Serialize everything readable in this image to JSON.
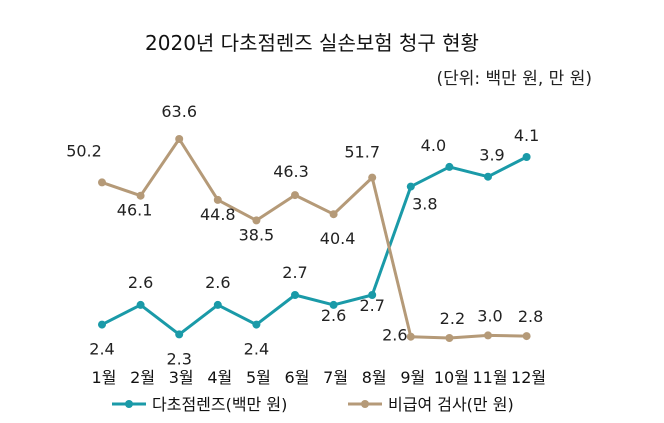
{
  "chart_data": {
    "type": "line",
    "title": "2020년 다초점렌즈 실손보험 청구 현황",
    "unit": "(단위: 백만 원, 만 원)",
    "categories": [
      "1월",
      "2월",
      "3월",
      "4월",
      "5월",
      "6월",
      "7월",
      "8월",
      "9월",
      "10월",
      "11월",
      "12월"
    ],
    "series": [
      {
        "name": "다초점렌즈(백만 원)",
        "color": "#1a9aa8",
        "values": [
          2.4,
          2.6,
          2.3,
          2.6,
          2.4,
          2.7,
          2.6,
          2.7,
          3.8,
          4.0,
          3.9,
          4.1
        ],
        "labels": [
          "2.4",
          "2.6",
          "2.3",
          "2.6",
          "2.4",
          "2.7",
          "2.6",
          "2.7",
          "3.8",
          "4.0",
          "3.9",
          "4.1"
        ]
      },
      {
        "name": "비급여 검사(만 원)",
        "color": "#b59a78",
        "values": [
          50.2,
          46.1,
          63.6,
          44.8,
          38.5,
          46.3,
          40.4,
          51.7,
          2.6,
          2.2,
          3.0,
          2.8
        ],
        "labels": [
          "50.2",
          "46.1",
          "63.6",
          "44.8",
          "38.5",
          "46.3",
          "40.4",
          "51.7",
          "2.6",
          "2.2",
          "3.0",
          "2.8"
        ]
      }
    ],
    "legend_position": "bottom",
    "grid": false,
    "dual_axis": true
  }
}
